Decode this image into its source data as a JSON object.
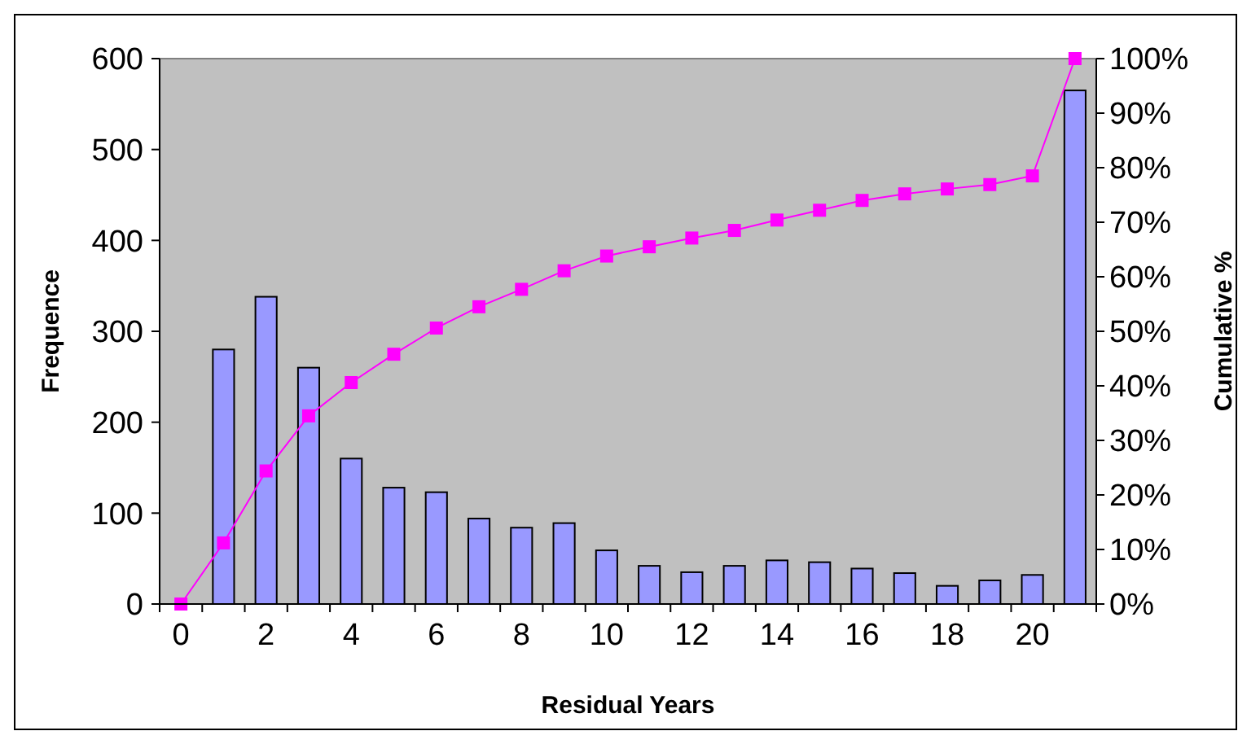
{
  "chart_data": {
    "type": "bar",
    "xlabel": "Residual Years",
    "ylabel": "Frequence",
    "y2label": "Cumulative %",
    "categories": [
      "0",
      null,
      "2",
      null,
      "4",
      null,
      "6",
      null,
      "8",
      null,
      "10",
      null,
      "12",
      null,
      "14",
      null,
      "16",
      null,
      "18",
      null,
      "20",
      null
    ],
    "series": [
      {
        "color": "#9999ff",
        "values": [
          null,
          280,
          338,
          260,
          160,
          128,
          123,
          94,
          84,
          89,
          59,
          42,
          35,
          42,
          48,
          46,
          39,
          34,
          20,
          26,
          32,
          565
        ]
      },
      {
        "type": "line",
        "axis": "y2",
        "color": "#ff00ff",
        "marker": "square",
        "line_style": "solid",
        "values": [
          0,
          11.2,
          24.4,
          34.5,
          40.6,
          45.8,
          50.6,
          54.5,
          57.7,
          61.1,
          63.8,
          65.5,
          67.1,
          68.5,
          70.4,
          72.2,
          74,
          75.2,
          76.1,
          76.9,
          78.5,
          100
        ]
      }
    ],
    "ylim": [
      0,
      600
    ],
    "yticks": [
      0,
      100,
      200,
      300,
      400,
      500,
      600
    ],
    "y2lim": [
      0,
      100
    ],
    "y2ticks": [
      {
        "value": 0,
        "label": "0%"
      },
      {
        "value": 10,
        "label": "10%"
      },
      {
        "value": 20,
        "label": "20%"
      },
      {
        "value": 30,
        "label": "30%"
      },
      {
        "value": 40,
        "label": "40%"
      },
      {
        "value": 50,
        "label": "50%"
      },
      {
        "value": 60,
        "label": "60%"
      },
      {
        "value": 70,
        "label": "70%"
      },
      {
        "value": 80,
        "label": "80%"
      },
      {
        "value": 90,
        "label": "90%"
      },
      {
        "value": 100,
        "label": "100%"
      }
    ],
    "grid": false
  }
}
